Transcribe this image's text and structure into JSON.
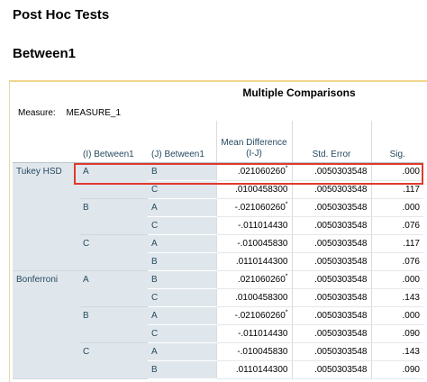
{
  "headings": {
    "section": "Post Hoc Tests",
    "subsection": "Between1"
  },
  "table": {
    "title": "Multiple Comparisons",
    "measure_label": "Measure:",
    "measure_value": "MEASURE_1",
    "columns": {
      "i": "(I) Between1",
      "j": "(J) Between1",
      "mean_diff": "Mean Difference (I-J)",
      "std_error": "Std. Error",
      "sig": "Sig."
    },
    "tests": [
      "Tukey HSD",
      "Bonferroni"
    ],
    "groups": [
      "A",
      "B",
      "C"
    ],
    "rows": [
      {
        "j": "B",
        "md": ".021060260",
        "star": "*",
        "se": ".0050303548",
        "sig": ".000"
      },
      {
        "j": "C",
        "md": ".0100458300",
        "star": "",
        "se": ".0050303548",
        "sig": ".117"
      },
      {
        "j": "A",
        "md": "-.021060260",
        "star": "*",
        "se": ".0050303548",
        "sig": ".000"
      },
      {
        "j": "C",
        "md": "-.011014430",
        "star": "",
        "se": ".0050303548",
        "sig": ".076"
      },
      {
        "j": "A",
        "md": "-.010045830",
        "star": "",
        "se": ".0050303548",
        "sig": ".117"
      },
      {
        "j": "B",
        "md": ".0110144300",
        "star": "",
        "se": ".0050303548",
        "sig": ".076"
      },
      {
        "j": "B",
        "md": ".021060260",
        "star": "*",
        "se": ".0050303548",
        "sig": ".000"
      },
      {
        "j": "C",
        "md": ".0100458300",
        "star": "",
        "se": ".0050303548",
        "sig": ".143"
      },
      {
        "j": "A",
        "md": "-.021060260",
        "star": "*",
        "se": ".0050303548",
        "sig": ".000"
      },
      {
        "j": "C",
        "md": "-.011014430",
        "star": "",
        "se": ".0050303548",
        "sig": ".090"
      },
      {
        "j": "A",
        "md": "-.010045830",
        "star": "",
        "se": ".0050303548",
        "sig": ".143"
      },
      {
        "j": "B",
        "md": ".0110144300",
        "star": "",
        "se": ".0050303548",
        "sig": ".090"
      }
    ]
  },
  "colors": {
    "highlight": "#e03a2f",
    "row_header_bg": "#e0e7ec",
    "panel_border": "#f0d68a"
  }
}
